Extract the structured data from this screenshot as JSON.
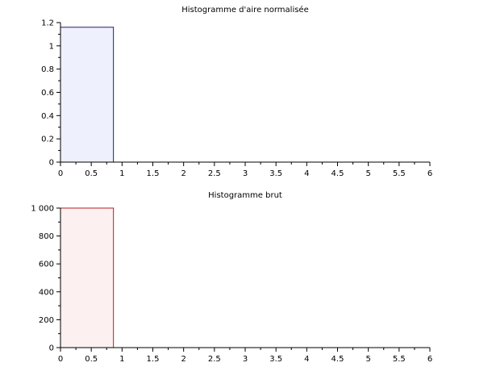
{
  "chart_data": [
    {
      "type": "bar",
      "title": "Histogramme d'aire normalisée",
      "xlabel": "",
      "ylabel": "",
      "xlim": [
        0,
        6
      ],
      "ylim": [
        0,
        1.2
      ],
      "grid": false,
      "bars": [
        {
          "x0": 0,
          "x1": 0.86,
          "value": 1.16
        }
      ],
      "fill": "#eef0fd",
      "stroke": "#1f1f6e",
      "x_ticks": [
        "0",
        "0.5",
        "1",
        "1.5",
        "2",
        "2.5",
        "3",
        "3.5",
        "4",
        "4.5",
        "5",
        "5.5",
        "6"
      ],
      "y_ticks": [
        "0",
        "0.2",
        "0.4",
        "0.6",
        "0.8",
        "1",
        "1.2"
      ]
    },
    {
      "type": "bar",
      "title": "Histogramme brut",
      "xlabel": "",
      "ylabel": "",
      "xlim": [
        0,
        6
      ],
      "ylim": [
        0,
        1000
      ],
      "grid": false,
      "bars": [
        {
          "x0": 0,
          "x1": 0.86,
          "value": 1000
        }
      ],
      "fill": "#fdf0f0",
      "stroke": "#b22222",
      "x_ticks": [
        "0",
        "0.5",
        "1",
        "1.5",
        "2",
        "2.5",
        "3",
        "3.5",
        "4",
        "4.5",
        "5",
        "5.5",
        "6"
      ],
      "y_ticks": [
        "0",
        "200",
        "400",
        "600",
        "800",
        "1 000"
      ]
    }
  ]
}
